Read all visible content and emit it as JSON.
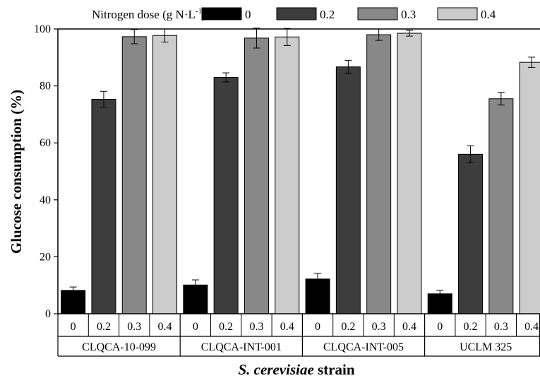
{
  "chart_data": {
    "type": "bar",
    "title": "",
    "ylabel": "Glucose consumption (%)",
    "xlabel": "strain",
    "xlabel_italic": "S. cerevisiae",
    "ylim": [
      0,
      100
    ],
    "yticks": [
      "0",
      "20",
      "40",
      "60",
      "80",
      "100"
    ],
    "legend": {
      "title": "Nitrogen dose (g N·L",
      "title_sup": "-1",
      "title_suffix": "):",
      "placement": "top"
    },
    "groups": [
      "CLQCA-10-099",
      "CLQCA-INT-001",
      "CLQCA-INT-005",
      "UCLM 325"
    ],
    "categories": [
      "0",
      "0.2",
      "0.3",
      "0.4"
    ],
    "series": [
      {
        "name": "0",
        "color": "#000000",
        "values": [
          8.2,
          10.1,
          12.2,
          7.0
        ],
        "errors": [
          1.2,
          1.8,
          2.0,
          1.2
        ]
      },
      {
        "name": "0.2",
        "color": "#3d3d3d",
        "values": [
          75.3,
          83.0,
          86.7,
          56.0
        ],
        "errors": [
          2.8,
          1.6,
          2.3,
          3.0
        ]
      },
      {
        "name": "0.3",
        "color": "#888888",
        "values": [
          97.3,
          96.8,
          98.0,
          75.5
        ],
        "errors": [
          2.5,
          3.5,
          2.0,
          2.2
        ]
      },
      {
        "name": "0.4",
        "color": "#cccccc",
        "values": [
          97.7,
          97.2,
          98.5,
          88.3
        ],
        "errors": [
          2.3,
          3.0,
          1.0,
          1.8
        ]
      }
    ]
  }
}
